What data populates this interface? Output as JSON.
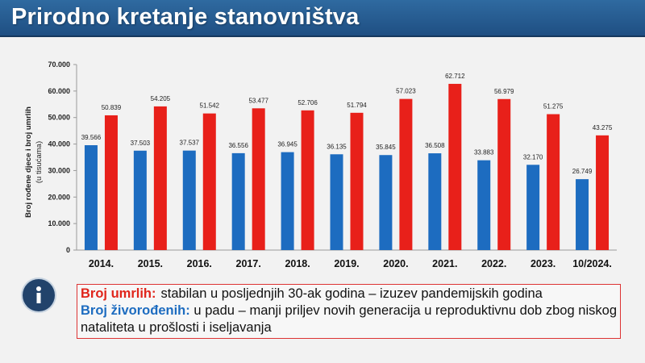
{
  "title": "Prirodno kretanje stanovništva",
  "chart_data": {
    "type": "bar",
    "categories": [
      "2014.",
      "2015.",
      "2016.",
      "2017.",
      "2018.",
      "2019.",
      "2020.",
      "2021.",
      "2022.",
      "2023.",
      "10/2024."
    ],
    "series": [
      {
        "name": "Broj živorođenih",
        "color": "#1d6cc0",
        "values": [
          39566,
          37503,
          37537,
          36556,
          36945,
          36135,
          35845,
          36508,
          33883,
          32170,
          26749
        ],
        "labels": [
          "39.566",
          "37.503",
          "37.537",
          "36.556",
          "36.945",
          "36.135",
          "35.845",
          "36.508",
          "33.883",
          "32.170",
          "26.749"
        ]
      },
      {
        "name": "Broj umrlih",
        "color": "#e8201a",
        "values": [
          50839,
          54205,
          51542,
          53477,
          52706,
          51794,
          57023,
          62712,
          56979,
          51275,
          43275
        ],
        "labels": [
          "50.839",
          "54.205",
          "51.542",
          "53.477",
          "52.706",
          "51.794",
          "57.023",
          "62.712",
          "56.979",
          "51.275",
          "43.275"
        ]
      }
    ],
    "ylabel_line1": "Broj rođene djece i broj umrlih",
    "ylabel_line2": "(u tisućama)",
    "ylim": [
      0,
      70000
    ],
    "yticks": [
      0,
      10000,
      20000,
      30000,
      40000,
      50000,
      60000,
      70000
    ],
    "ytick_labels": [
      "0",
      "10.000",
      "20.000",
      "30.000",
      "40.000",
      "50.000",
      "60.000",
      "70.000"
    ]
  },
  "info": {
    "icon": "info-icon",
    "deaths_label": "Broj umrlih:",
    "deaths_text": "stabilan u posljednjih 30-ak godina – izuzev pandemijskih godina",
    "births_label": "Broj živorođenih:",
    "births_text": "u padu – manji priljev novih generacija u reproduktivnu dob zbog niskog nataliteta u prošlosti i iseljavanja"
  }
}
